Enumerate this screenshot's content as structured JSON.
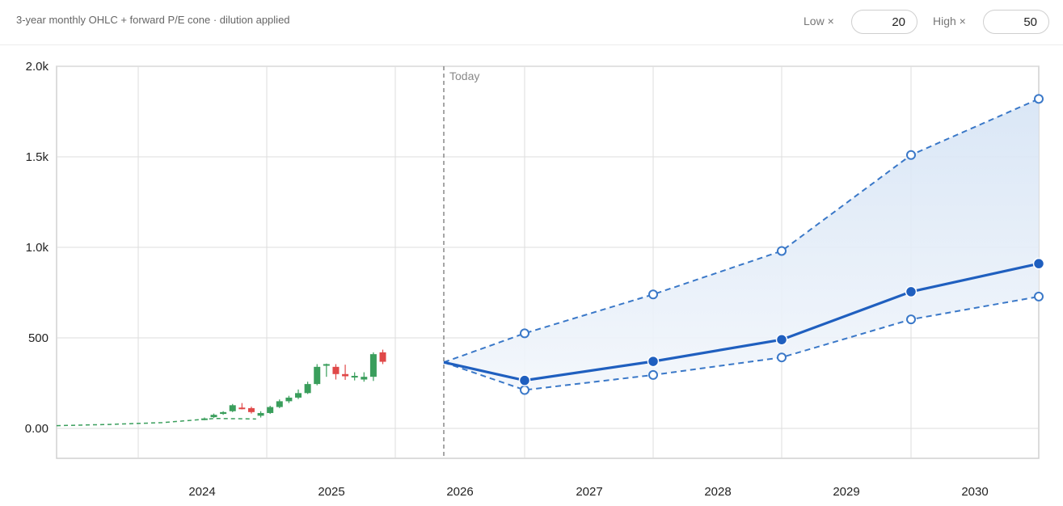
{
  "header": {
    "subtitle": "3-year monthly OHLC + forward P/E cone · dilution applied",
    "low_label": "Low ×",
    "low_value": "20",
    "high_label": "High ×",
    "high_value": "50"
  },
  "chart_data": {
    "type": "candlestick+cone",
    "y_ticks": [
      {
        "value": 0,
        "label": "0.00"
      },
      {
        "value": 500,
        "label": "500"
      },
      {
        "value": 1000,
        "label": "1.0k"
      },
      {
        "value": 1500,
        "label": "1.5k"
      },
      {
        "value": 2000,
        "label": "2.0k"
      }
    ],
    "ylim": [
      -165,
      2000
    ],
    "xlim": [
      2023.0,
      2030.62
    ],
    "x_ticks": [
      {
        "value": 2024,
        "label": "2024"
      },
      {
        "value": 2025,
        "label": "2025"
      },
      {
        "value": 2026,
        "label": "2026"
      },
      {
        "value": 2027,
        "label": "2027"
      },
      {
        "value": 2028,
        "label": "2028"
      },
      {
        "value": 2029,
        "label": "2029"
      },
      {
        "value": 2030,
        "label": "2030"
      }
    ],
    "grid": true,
    "today": {
      "x": 2023.5,
      "label": "Today"
    },
    "history_line": [
      [
        2023.0,
        15
      ],
      [
        2023.45,
        22
      ],
      [
        2023.9,
        32
      ],
      [
        2024.35,
        55
      ],
      [
        2024.7,
        52
      ]
    ],
    "ohlc": [
      {
        "t": 2024.73,
        "o": 50,
        "h": 60,
        "l": 45,
        "c": 55
      },
      {
        "t": 2024.81,
        "o": 62,
        "h": 82,
        "l": 58,
        "c": 75
      },
      {
        "t": 2024.89,
        "o": 80,
        "h": 95,
        "l": 75,
        "c": 90
      },
      {
        "t": 2024.97,
        "o": 95,
        "h": 135,
        "l": 90,
        "c": 128
      },
      {
        "t": 2025.05,
        "o": 115,
        "h": 140,
        "l": 105,
        "c": 112
      },
      {
        "t": 2025.13,
        "o": 112,
        "h": 120,
        "l": 82,
        "c": 90
      },
      {
        "t": 2025.21,
        "o": 70,
        "h": 95,
        "l": 60,
        "c": 85
      },
      {
        "t": 2025.29,
        "o": 85,
        "h": 125,
        "l": 80,
        "c": 118
      },
      {
        "t": 2025.37,
        "o": 118,
        "h": 160,
        "l": 112,
        "c": 150
      },
      {
        "t": 2025.45,
        "o": 150,
        "h": 180,
        "l": 140,
        "c": 170
      },
      {
        "t": 2025.53,
        "o": 170,
        "h": 215,
        "l": 162,
        "c": 195
      },
      {
        "t": 2025.61,
        "o": 195,
        "h": 258,
        "l": 190,
        "c": 245
      },
      {
        "t": 2025.69,
        "o": 245,
        "h": 355,
        "l": 238,
        "c": 340
      },
      {
        "t": 2025.77,
        "o": 350,
        "h": 358,
        "l": 285,
        "c": 355
      },
      {
        "t": 2025.85,
        "o": 340,
        "h": 355,
        "l": 270,
        "c": 300
      },
      {
        "t": 2025.93,
        "o": 300,
        "h": 352,
        "l": 268,
        "c": 288
      },
      {
        "t": 2026.01,
        "o": 290,
        "h": 310,
        "l": 265,
        "c": 290
      },
      {
        "t": 2026.09,
        "o": 270,
        "h": 310,
        "l": 258,
        "c": 285
      },
      {
        "t": 2026.17,
        "o": 285,
        "h": 420,
        "l": 262,
        "c": 410
      },
      {
        "t": 2026.25,
        "o": 420,
        "h": 435,
        "l": 355,
        "c": 368
      }
    ],
    "cone_x": [
      2026.3,
      2026.62,
      2027.62,
      2028.62,
      2029.62,
      2030.62
    ],
    "series": [
      {
        "name": "",
        "role": "high",
        "values": [
          365,
          525,
          740,
          980,
          1510,
          1820
        ]
      },
      {
        "name": "",
        "role": "mid",
        "values": [
          365,
          265,
          370,
          490,
          755,
          910
        ]
      },
      {
        "name": "",
        "role": "low",
        "values": [
          365,
          212,
          295,
          392,
          602,
          728
        ]
      }
    ],
    "colors": {
      "up": "#3a9e5c",
      "down": "#e04848",
      "cone": "#1f5fbf",
      "cone_dash": "#3a78c8",
      "fill": "#dce8f6",
      "history": "#3a9e5c"
    }
  }
}
